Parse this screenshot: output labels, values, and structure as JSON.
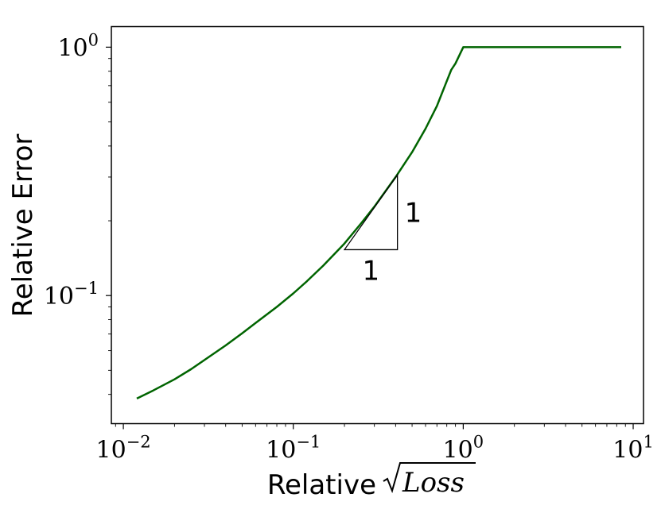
{
  "chart_data": {
    "type": "line",
    "xscale": "log",
    "yscale": "log",
    "xlim": [
      0.0085,
      11.5
    ],
    "ylim": [
      0.0305,
      1.21
    ],
    "grid": false,
    "xlabel_prefix": "Relative",
    "xlabel_math": "Loss",
    "ylabel": "Relative Error",
    "x_ticks": [
      {
        "base": "10",
        "exp": "−2",
        "value": 0.01
      },
      {
        "base": "10",
        "exp": "−1",
        "value": 0.1
      },
      {
        "base": "10",
        "exp": "0",
        "value": 1
      },
      {
        "base": "10",
        "exp": "1",
        "value": 10
      }
    ],
    "y_ticks": [
      {
        "base": "10",
        "exp": "−1",
        "value": 0.1
      },
      {
        "base": "10",
        "exp": "0",
        "value": 1
      }
    ],
    "series": [
      {
        "color": "#006400",
        "x": [
          0.012,
          0.015,
          0.02,
          0.025,
          0.03,
          0.04,
          0.05,
          0.06,
          0.08,
          0.1,
          0.12,
          0.15,
          0.2,
          0.25,
          0.3,
          0.4,
          0.5,
          0.6,
          0.7,
          0.8,
          0.85,
          0.9,
          1.0,
          1.5,
          2,
          3,
          5,
          8.5
        ],
        "y": [
          0.0385,
          0.0415,
          0.046,
          0.0505,
          0.055,
          0.063,
          0.0705,
          0.0775,
          0.09,
          0.102,
          0.114,
          0.132,
          0.162,
          0.195,
          0.228,
          0.3,
          0.378,
          0.47,
          0.58,
          0.73,
          0.81,
          0.86,
          1.0,
          1.0,
          1.0,
          1.0,
          1.0,
          1.0
        ]
      }
    ],
    "annotations": [
      {
        "type": "slope-triangle",
        "x_left": 0.2,
        "x_right": 0.41,
        "y_bottom": 0.153,
        "y_top": 0.306,
        "horizontal_label": "1",
        "vertical_label": "1"
      }
    ]
  }
}
